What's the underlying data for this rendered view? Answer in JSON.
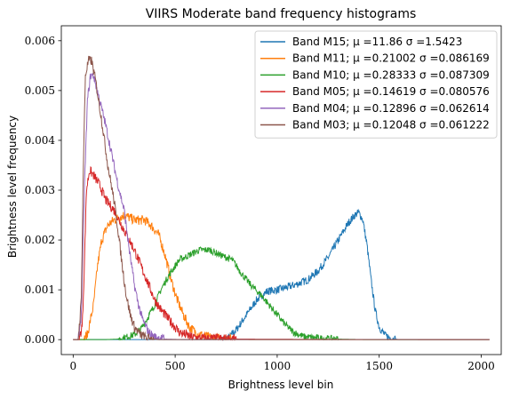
{
  "chart_data": {
    "type": "line",
    "title": "VIIRS Moderate band frequency histograms",
    "xlabel": "Brightness level bin",
    "ylabel": "Brightness level frequency",
    "xlim": [
      -58,
      2098
    ],
    "ylim": [
      -0.0003,
      0.0063
    ],
    "xticks": [
      0,
      500,
      1000,
      1500,
      2000
    ],
    "xtick_labels": [
      "0",
      "500",
      "1000",
      "1500",
      "2000"
    ],
    "yticks": [
      0.0,
      0.001,
      0.002,
      0.003,
      0.004,
      0.005,
      0.006
    ],
    "ytick_labels": [
      "0.000",
      "0.001",
      "0.002",
      "0.003",
      "0.004",
      "0.005",
      "0.006"
    ],
    "legend_position": "top-right",
    "grid": false,
    "series": [
      {
        "name": "Band M15; μ =11.86 σ =1.5423",
        "color": "#1f77b4",
        "noise": 8e-05,
        "points": [
          [
            0,
            0
          ],
          [
            700,
            0
          ],
          [
            760,
            3e-05
          ],
          [
            800,
            0.0002
          ],
          [
            850,
            0.0005
          ],
          [
            900,
            0.0008
          ],
          [
            950,
            0.00097
          ],
          [
            1000,
            0.001
          ],
          [
            1050,
            0.00105
          ],
          [
            1100,
            0.00112
          ],
          [
            1150,
            0.0012
          ],
          [
            1200,
            0.00138
          ],
          [
            1250,
            0.00165
          ],
          [
            1300,
            0.002
          ],
          [
            1350,
            0.00235
          ],
          [
            1380,
            0.0025
          ],
          [
            1400,
            0.00255
          ],
          [
            1420,
            0.0024
          ],
          [
            1440,
            0.0019
          ],
          [
            1460,
            0.0012
          ],
          [
            1480,
            0.0006
          ],
          [
            1500,
            0.00025
          ],
          [
            1530,
            8e-05
          ],
          [
            1560,
            2e-05
          ],
          [
            1600,
            0
          ],
          [
            2040,
            0
          ]
        ]
      },
      {
        "name": "Band M11; μ =0.21002 σ =0.086169",
        "color": "#ff7f0e",
        "noise": 0.0001,
        "points": [
          [
            0,
            0
          ],
          [
            50,
            0
          ],
          [
            70,
            0.0001
          ],
          [
            100,
            0.0007
          ],
          [
            120,
            0.0015
          ],
          [
            140,
            0.002
          ],
          [
            170,
            0.0023
          ],
          [
            200,
            0.0024
          ],
          [
            250,
            0.0025
          ],
          [
            300,
            0.0024
          ],
          [
            350,
            0.0024
          ],
          [
            380,
            0.0023
          ],
          [
            420,
            0.0021
          ],
          [
            450,
            0.0017
          ],
          [
            480,
            0.0012
          ],
          [
            510,
            0.0008
          ],
          [
            540,
            0.0005
          ],
          [
            570,
            0.00025
          ],
          [
            610,
            0.00012
          ],
          [
            660,
            5e-05
          ],
          [
            720,
            2e-05
          ],
          [
            800,
            5e-06
          ],
          [
            900,
            0
          ],
          [
            2040,
            0
          ]
        ]
      },
      {
        "name": "Band M10; μ =0.28333 σ =0.087309",
        "color": "#2ca02c",
        "noise": 7e-05,
        "points": [
          [
            0,
            0
          ],
          [
            150,
            0
          ],
          [
            220,
            1e-05
          ],
          [
            260,
            5e-05
          ],
          [
            300,
            0.0001
          ],
          [
            330,
            0.0002
          ],
          [
            360,
            0.0004
          ],
          [
            400,
            0.0007
          ],
          [
            430,
            0.001
          ],
          [
            470,
            0.0013
          ],
          [
            520,
            0.0016
          ],
          [
            570,
            0.0017
          ],
          [
            620,
            0.0018
          ],
          [
            670,
            0.0018
          ],
          [
            720,
            0.0017
          ],
          [
            780,
            0.0016
          ],
          [
            830,
            0.0013
          ],
          [
            870,
            0.0011
          ],
          [
            920,
            0.0009
          ],
          [
            960,
            0.0007
          ],
          [
            1000,
            0.0005
          ],
          [
            1040,
            0.0003
          ],
          [
            1080,
            0.00015
          ],
          [
            1130,
            6e-05
          ],
          [
            1200,
            3e-05
          ],
          [
            1300,
            1e-05
          ],
          [
            1450,
            0
          ],
          [
            2040,
            0
          ]
        ]
      },
      {
        "name": "Band M05; μ =0.14619 σ =0.080576",
        "color": "#d62728",
        "noise": 0.0001,
        "points": [
          [
            0,
            0
          ],
          [
            30,
            0
          ],
          [
            45,
            0.0003
          ],
          [
            55,
            0.0015
          ],
          [
            65,
            0.003
          ],
          [
            80,
            0.0034
          ],
          [
            100,
            0.0033
          ],
          [
            130,
            0.0031
          ],
          [
            160,
            0.0028
          ],
          [
            200,
            0.0026
          ],
          [
            250,
            0.0022
          ],
          [
            300,
            0.0018
          ],
          [
            350,
            0.0013
          ],
          [
            400,
            0.0008
          ],
          [
            430,
            0.0006
          ],
          [
            470,
            0.0004
          ],
          [
            520,
            0.00015
          ],
          [
            580,
            5e-05
          ],
          [
            650,
            2e-05
          ],
          [
            800,
            1e-05
          ],
          [
            1200,
            5e-06
          ],
          [
            2040,
            0
          ]
        ]
      },
      {
        "name": "Band M04; μ =0.12896 σ =0.062614",
        "color": "#9467bd",
        "noise": 9e-05,
        "points": [
          [
            0,
            0
          ],
          [
            25,
            0
          ],
          [
            40,
            0.0005
          ],
          [
            55,
            0.003
          ],
          [
            70,
            0.0048
          ],
          [
            85,
            0.0053
          ],
          [
            100,
            0.0053
          ],
          [
            130,
            0.0048
          ],
          [
            160,
            0.0043
          ],
          [
            190,
            0.0037
          ],
          [
            220,
            0.0031
          ],
          [
            250,
            0.0026
          ],
          [
            275,
            0.0018
          ],
          [
            300,
            0.0011
          ],
          [
            320,
            0.0007
          ],
          [
            340,
            0.0004
          ],
          [
            370,
            0.00015
          ],
          [
            400,
            5e-05
          ],
          [
            450,
            1e-05
          ],
          [
            550,
            0
          ],
          [
            2040,
            0
          ]
        ]
      },
      {
        "name": "Band M03; μ =0.12048 σ =0.061222",
        "color": "#8c564b",
        "noise": 0.0001,
        "points": [
          [
            0,
            0
          ],
          [
            25,
            0
          ],
          [
            40,
            0.0008
          ],
          [
            50,
            0.0035
          ],
          [
            60,
            0.0053
          ],
          [
            75,
            0.0056
          ],
          [
            90,
            0.0056
          ],
          [
            110,
            0.0052
          ],
          [
            140,
            0.0044
          ],
          [
            170,
            0.0035
          ],
          [
            200,
            0.0028
          ],
          [
            220,
            0.0022
          ],
          [
            240,
            0.0015
          ],
          [
            260,
            0.0009
          ],
          [
            280,
            0.0005
          ],
          [
            300,
            0.00025
          ],
          [
            330,
            0.0001
          ],
          [
            360,
            3e-05
          ],
          [
            420,
            0
          ],
          [
            2040,
            0
          ]
        ]
      }
    ]
  }
}
